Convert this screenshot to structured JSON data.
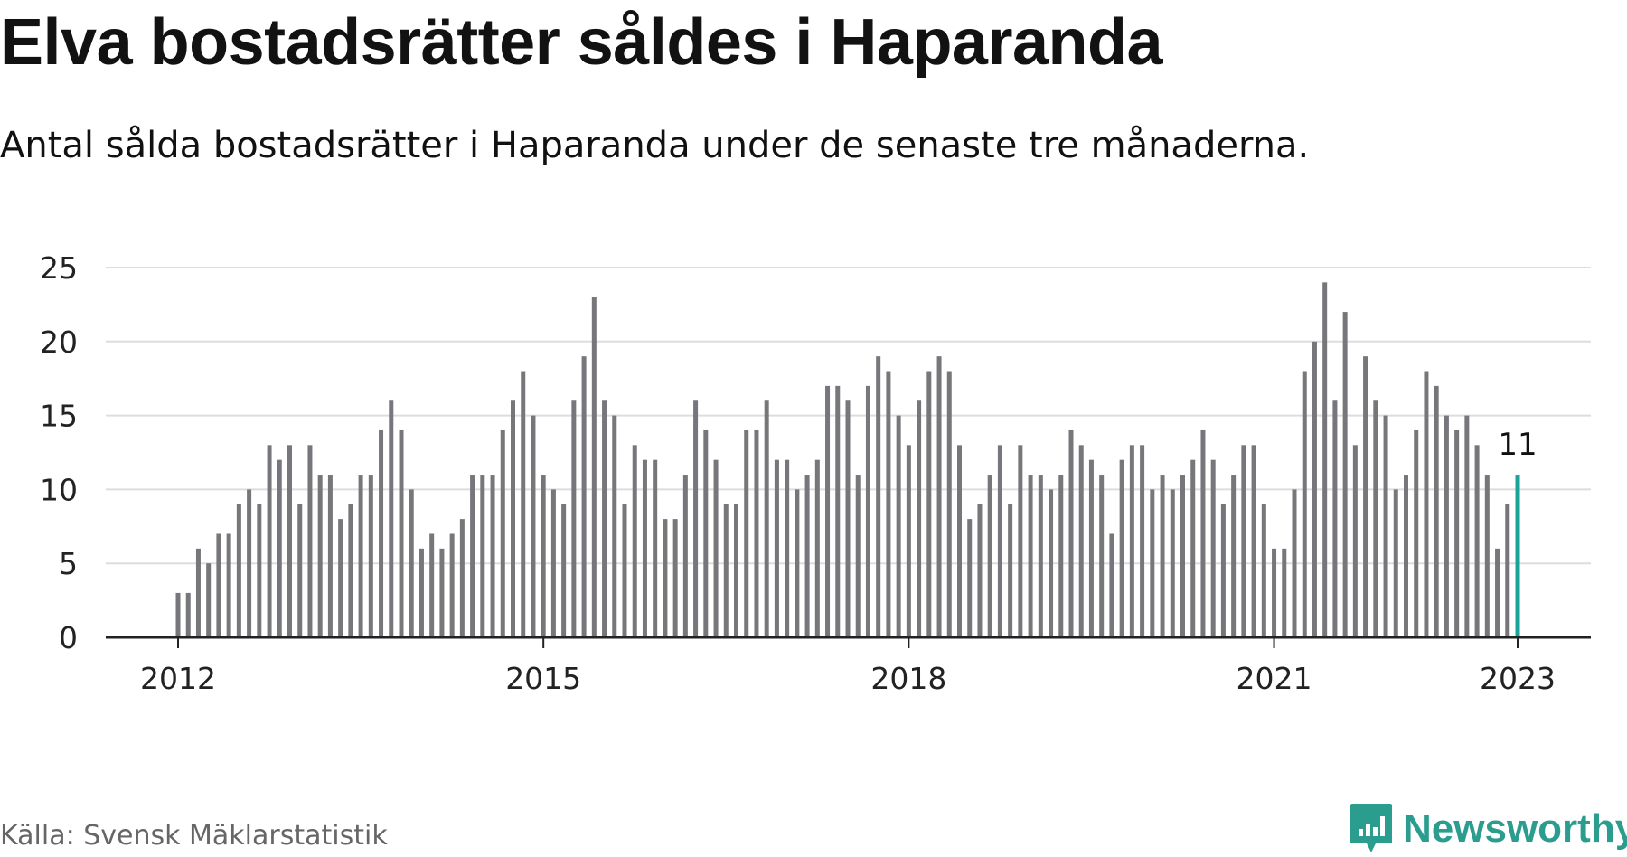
{
  "title": "Elva bostadsrätter såldes i Haparanda",
  "subtitle": "Antal sålda bostadsrätter i Haparanda under de senaste tre månaderna.",
  "source": "Källa: Svensk Mäklarstatistik",
  "brand": {
    "name": "Newsworthy",
    "icon": "newsworthy-logo-icon",
    "color": "#2a9d8f"
  },
  "colors": {
    "bar": "#76767b",
    "highlight": "#1aa398",
    "grid": "#dddddd",
    "axis": "#222222"
  },
  "chart_data": {
    "type": "bar",
    "title": "Elva bostadsrätter såldes i Haparanda",
    "xlabel": "",
    "ylabel": "",
    "ylim": [
      0,
      25
    ],
    "y_ticks": [
      0,
      5,
      10,
      15,
      20,
      25
    ],
    "x_ticks": [
      "2012",
      "2015",
      "2018",
      "2021",
      "2023"
    ],
    "grid": true,
    "start": "2012-01",
    "frequency": "monthly",
    "values": [
      3,
      3,
      6,
      5,
      7,
      7,
      9,
      10,
      9,
      13,
      12,
      13,
      9,
      13,
      11,
      11,
      8,
      9,
      11,
      11,
      14,
      16,
      14,
      10,
      6,
      7,
      6,
      7,
      8,
      11,
      11,
      11,
      14,
      16,
      18,
      15,
      11,
      10,
      9,
      16,
      19,
      23,
      16,
      15,
      9,
      13,
      12,
      12,
      8,
      8,
      11,
      16,
      14,
      12,
      9,
      9,
      14,
      14,
      16,
      12,
      12,
      10,
      11,
      12,
      17,
      17,
      16,
      11,
      17,
      19,
      18,
      15,
      13,
      16,
      18,
      19,
      18,
      13,
      8,
      9,
      11,
      13,
      9,
      13,
      11,
      11,
      10,
      11,
      14,
      13,
      12,
      11,
      7,
      12,
      13,
      13,
      10,
      11,
      10,
      11,
      12,
      14,
      12,
      9,
      11,
      13,
      13,
      9,
      6,
      6,
      10,
      18,
      20,
      24,
      16,
      22,
      13,
      19,
      16,
      15,
      10,
      11,
      14,
      18,
      17,
      15,
      14,
      15,
      13,
      11,
      6,
      9,
      11
    ],
    "highlight_last": true,
    "last_value_label": "11"
  }
}
